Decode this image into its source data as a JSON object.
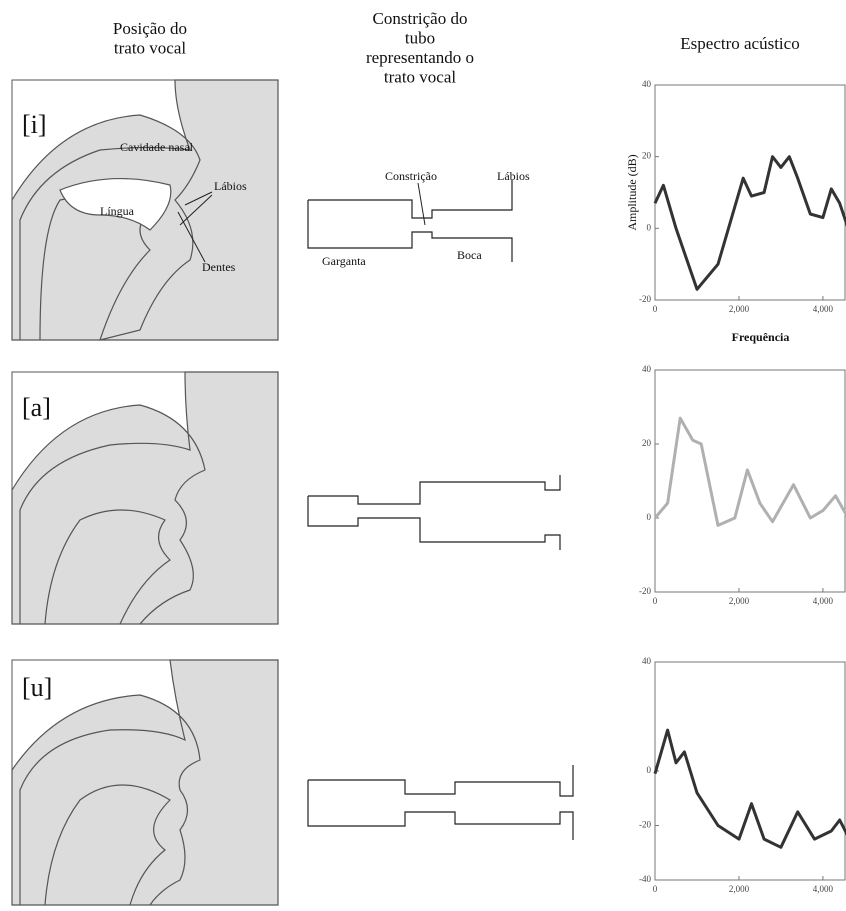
{
  "headings": [
    "Posição do trato vocal",
    "Constrição do tubo representando o trato vocal",
    "Espectro acústico"
  ],
  "rows": [
    {
      "vowel": "[i]",
      "tract_labels": [
        "Cavidade nasal",
        "Lábios",
        "Língua",
        "Dentes"
      ],
      "tube_labels": [
        "Constrição",
        "Lábios",
        "Garganta",
        "Boca"
      ]
    },
    {
      "vowel": "[a]"
    },
    {
      "vowel": "[u]"
    }
  ],
  "chart_data": [
    {
      "type": "line",
      "y_label": "Amplitude (dB)",
      "x_label": "Frequência",
      "x": [
        0,
        200,
        500,
        1000,
        1500,
        2000,
        2100,
        2300,
        2600,
        2800,
        3000,
        3200,
        3400,
        3700,
        4000,
        4200,
        4400,
        4600
      ],
      "series": [
        {
          "color": "#333333",
          "values": [
            7,
            12,
            0,
            -17,
            -10,
            10,
            14,
            9,
            10,
            20,
            17,
            20,
            14,
            4,
            3,
            11,
            7,
            0
          ]
        }
      ],
      "xlim": [
        0,
        4550
      ],
      "xticks": [
        0,
        {
          "value": 2000,
          "label": "2,000"
        },
        {
          "value": 4000,
          "label": "4,000"
        }
      ],
      "ylim": [
        -20,
        40
      ],
      "yticks": [
        40,
        20,
        0,
        -20
      ]
    },
    {
      "type": "line",
      "x": [
        0,
        300,
        600,
        900,
        1100,
        1500,
        1900,
        2200,
        2500,
        2800,
        3300,
        3700,
        4000,
        4300,
        4600
      ],
      "series": [
        {
          "color": "#b0b0b0",
          "values": [
            0,
            4,
            27,
            21,
            20,
            -2,
            0,
            13,
            4,
            -1,
            9,
            0,
            2,
            6,
            0
          ]
        }
      ],
      "xlim": [
        0,
        4550
      ],
      "xticks": [
        0,
        {
          "value": 2000,
          "label": "2,000"
        },
        {
          "value": 4000,
          "label": "4,000"
        }
      ],
      "ylim": [
        -20,
        40
      ],
      "yticks": [
        40,
        20,
        0,
        -20
      ]
    },
    {
      "type": "line",
      "x": [
        0,
        300,
        500,
        700,
        1000,
        1500,
        2000,
        2300,
        2600,
        3000,
        3400,
        3800,
        4200,
        4400,
        4600
      ],
      "series": [
        {
          "color": "#333333",
          "values": [
            -1,
            15,
            3,
            7,
            -8,
            -20,
            -25,
            -12,
            -25,
            -28,
            -15,
            -25,
            -22,
            -18,
            -24
          ]
        }
      ],
      "xlim": [
        0,
        4550
      ],
      "xticks": [
        0,
        {
          "value": 2000,
          "label": "2,000"
        },
        {
          "value": 4000,
          "label": "4,000"
        }
      ],
      "ylim": [
        -40,
        40
      ],
      "yticks": [
        40,
        0,
        -20,
        -40
      ]
    }
  ]
}
